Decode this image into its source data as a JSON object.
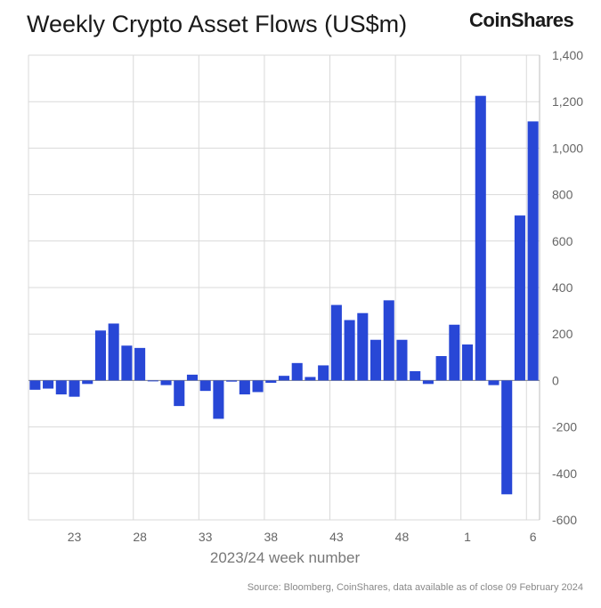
{
  "title": "Weekly Crypto Asset Flows (US$m)",
  "logo": "CoinShares",
  "source": "Source: Bloomberg, CoinShares, data available as of close 09 February 2024",
  "colors": {
    "bar": "#2847d6",
    "grid": "#d9d9d9",
    "axis": "#666666"
  },
  "chart_data": {
    "type": "bar",
    "xlabel": "2023/24 week number",
    "ylabel": "",
    "ylim": [
      -600,
      1400
    ],
    "yticks": [
      -600,
      -400,
      -200,
      0,
      200,
      400,
      600,
      800,
      1000,
      1200,
      1400
    ],
    "xtick_labels": [
      "23",
      "28",
      "33",
      "38",
      "43",
      "48",
      "1",
      "6"
    ],
    "grid": true,
    "categories": [
      "20",
      "21",
      "22",
      "23",
      "24",
      "25",
      "26",
      "27",
      "28",
      "29",
      "30",
      "31",
      "32",
      "33",
      "34",
      "35",
      "36",
      "37",
      "38",
      "39",
      "40",
      "41",
      "42",
      "43",
      "44",
      "45",
      "46",
      "47",
      "48",
      "49",
      "50",
      "51",
      "52",
      "1",
      "2",
      "3",
      "4",
      "5",
      "6"
    ],
    "values": [
      -40,
      -35,
      -60,
      -70,
      -15,
      215,
      245,
      150,
      140,
      0,
      -20,
      -110,
      25,
      -45,
      -165,
      -5,
      -60,
      -50,
      -10,
      20,
      75,
      15,
      65,
      325,
      260,
      290,
      175,
      345,
      175,
      40,
      -15,
      105,
      240,
      155,
      1225,
      -20,
      -490,
      710,
      1115
    ]
  }
}
